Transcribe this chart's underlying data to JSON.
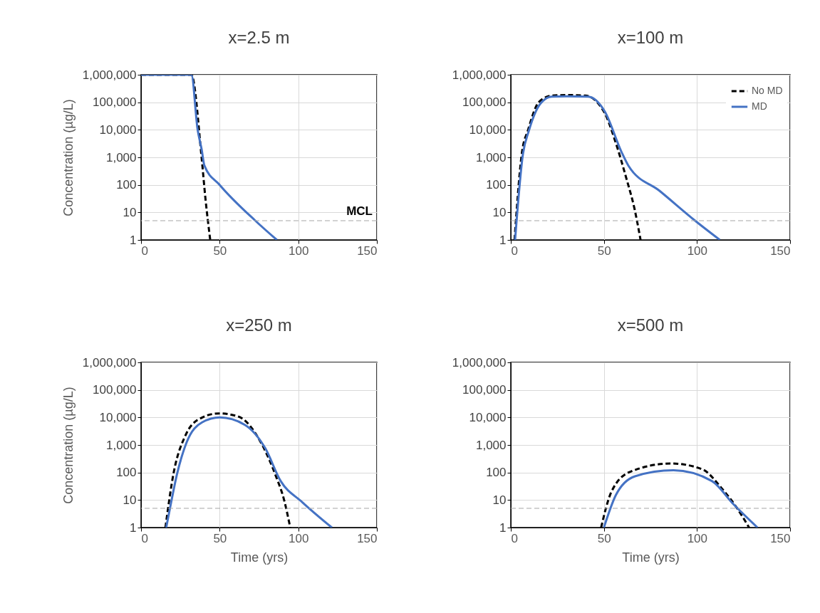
{
  "chart_data": [
    {
      "type": "line",
      "title": "x=2.5 m",
      "ylabel": "Concentration (µg/L)",
      "log": true,
      "grid": true,
      "xlim": [
        0,
        150
      ],
      "xticks": [
        0,
        50,
        100,
        150
      ],
      "ylim": [
        1,
        1000000
      ],
      "yticks": [
        1,
        10,
        100,
        {
          "value": 1000,
          "label": "1,000"
        },
        {
          "value": 10000,
          "label": "10,000"
        },
        {
          "value": 100000,
          "label": "100,000"
        },
        {
          "value": 1000000,
          "label": "1,000,000"
        }
      ],
      "series": [
        {
          "color": "#000000",
          "line_style": "dashed",
          "x": [
            0,
            32,
            38.5,
            41,
            44
          ],
          "values": [
            1000000,
            1000000,
            1000,
            30,
            1
          ]
        },
        {
          "color": "#4472c4",
          "line_style": "solid",
          "x": [
            0,
            32,
            36,
            38.5,
            40.3,
            50,
            72.7,
            86.4
          ],
          "values": [
            1000000,
            1000000,
            10000,
            2000,
            500,
            100,
            5,
            1
          ]
        }
      ],
      "ref_lines": [
        {
          "axis": "y",
          "value": 5,
          "label": "MCL",
          "color": "#a6a6a6",
          "line_style": "dashed"
        }
      ]
    },
    {
      "type": "line",
      "title": "x=100 m",
      "log": true,
      "grid": true,
      "legend": "top right",
      "xlim": [
        0,
        150
      ],
      "xticks": [
        0,
        50,
        100,
        150
      ],
      "ylim": [
        1,
        1000000
      ],
      "yticks": [
        1,
        10,
        100,
        {
          "value": 1000,
          "label": "1,000"
        },
        {
          "value": 10000,
          "label": "10,000"
        },
        {
          "value": 100000,
          "label": "100,000"
        },
        {
          "value": 1000000,
          "label": "1,000,000"
        }
      ],
      "series": [
        {
          "name": "No MD",
          "color": "#000000",
          "line_style": "dashed",
          "x": [
            2,
            6,
            9.3,
            15,
            22,
            30,
            40,
            50,
            56.3,
            62,
            66.5,
            69.7
          ],
          "values": [
            1,
            1500,
            10000,
            100000,
            175000,
            183000,
            175000,
            46000,
            3500,
            178,
            13,
            1
          ]
        },
        {
          "name": "MD",
          "color": "#4472c4",
          "line_style": "solid",
          "x": [
            2.3,
            6.5,
            9.7,
            16,
            22,
            30,
            41.6,
            50.5,
            59.4,
            63.3,
            80,
            99,
            112.3
          ],
          "values": [
            1,
            1300,
            9300,
            91000,
            160000,
            166000,
            160000,
            46000,
            1600,
            480,
            60,
            5,
            1
          ]
        }
      ],
      "ref_lines": [
        {
          "axis": "y",
          "value": 5,
          "color": "#a6a6a6",
          "line_style": "dashed"
        }
      ]
    },
    {
      "type": "line",
      "title": "x=250 m",
      "xlabel": "Time (yrs)",
      "ylabel": "Concentration (µg/L)",
      "log": true,
      "grid": true,
      "xlim": [
        0,
        150
      ],
      "xticks": [
        0,
        50,
        100,
        150
      ],
      "ylim": [
        1,
        1000000
      ],
      "yticks": [
        1,
        10,
        100,
        {
          "value": 1000,
          "label": "1,000"
        },
        {
          "value": 10000,
          "label": "10,000"
        },
        {
          "value": 100000,
          "label": "100,000"
        },
        {
          "value": 1000000,
          "label": "1,000,000"
        }
      ],
      "series": [
        {
          "color": "#000000",
          "line_style": "dashed",
          "x": [
            15.5,
            20.6,
            28.2,
            35.8,
            49.4,
            61.5,
            76.7,
            85.8,
            91,
            94.9
          ],
          "values": [
            1,
            89,
            2200,
            8000,
            14000,
            11000,
            1100,
            73,
            10,
            1
          ]
        },
        {
          "color": "#4472c4",
          "line_style": "solid",
          "x": [
            16,
            18.3,
            22.9,
            29,
            38.8,
            50.1,
            66,
            79,
            88.8,
            102.4,
            121.4
          ],
          "values": [
            1,
            4.7,
            89,
            1250,
            6600,
            10000,
            5400,
            760,
            49,
            8.5,
            1
          ]
        }
      ],
      "ref_lines": [
        {
          "axis": "y",
          "value": 5,
          "color": "#a6a6a6",
          "line_style": "dashed"
        }
      ]
    },
    {
      "type": "line",
      "title": "x=500 m",
      "xlabel": "Time (yrs)",
      "log": true,
      "grid": true,
      "xlim": [
        0,
        150
      ],
      "xticks": [
        0,
        50,
        100,
        150
      ],
      "ylim": [
        1,
        1000000
      ],
      "yticks": [
        1,
        10,
        100,
        {
          "value": 1000,
          "label": "1,000"
        },
        {
          "value": 10000,
          "label": "10,000"
        },
        {
          "value": 100000,
          "label": "100,000"
        },
        {
          "value": 1000000,
          "label": "1,000,000"
        }
      ],
      "series": [
        {
          "color": "#000000",
          "line_style": "dashed",
          "x": [
            48.5,
            53.9,
            64.2,
            86.1,
            102.9,
            113.2,
            121,
            128
          ],
          "values": [
            1,
            19,
            107,
            213,
            130,
            27,
            5.7,
            1
          ]
        },
        {
          "color": "#4472c4",
          "line_style": "solid",
          "x": [
            50,
            56.4,
            66.7,
            87.4,
            108,
            119.6,
            132.5
          ],
          "values": [
            1,
            15,
            73,
            120,
            49,
            7,
            1
          ]
        }
      ],
      "ref_lines": [
        {
          "axis": "y",
          "value": 5,
          "color": "#a6a6a6",
          "line_style": "dashed"
        }
      ]
    }
  ]
}
